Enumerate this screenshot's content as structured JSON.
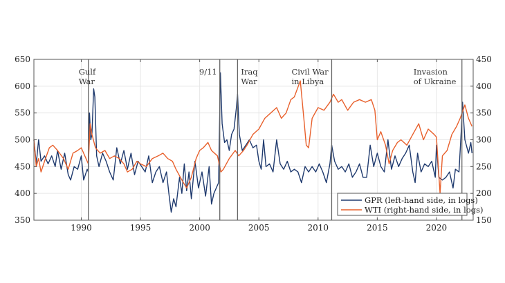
{
  "chart_data": {
    "type": "line",
    "xlim": [
      1986.0,
      2023.1
    ],
    "x_ticks": [
      1990,
      1995,
      2000,
      2005,
      2010,
      2015,
      2020
    ],
    "left_axis": {
      "range": [
        350,
        650
      ],
      "ticks": [
        350,
        400,
        450,
        500,
        550,
        600,
        650
      ]
    },
    "right_axis": {
      "range": [
        150,
        450
      ],
      "ticks": [
        150,
        200,
        250,
        300,
        350,
        400,
        450
      ]
    },
    "grid": true,
    "legend_position": "bottom-right",
    "events": [
      {
        "x": 1990.6,
        "label": [
          "Gulf",
          "War"
        ]
      },
      {
        "x": 2001.7,
        "label": [
          "9/11"
        ]
      },
      {
        "x": 2003.2,
        "label": [
          "Iraq",
          "War"
        ]
      },
      {
        "x": 2011.15,
        "label": [
          "Civil War",
          "in Libya"
        ]
      },
      {
        "x": 2022.15,
        "label": [
          "Invasion",
          "of Ukraine"
        ]
      }
    ],
    "series": [
      {
        "name": "GPR (left-hand side, in logs)",
        "axis": "left",
        "color": "#1f3a6e",
        "points": [
          [
            1986.0,
            500
          ],
          [
            1986.2,
            455
          ],
          [
            1986.4,
            500
          ],
          [
            1986.6,
            460
          ],
          [
            1986.9,
            470
          ],
          [
            1987.2,
            455
          ],
          [
            1987.5,
            470
          ],
          [
            1987.8,
            450
          ],
          [
            1988.0,
            480
          ],
          [
            1988.3,
            445
          ],
          [
            1988.6,
            475
          ],
          [
            1988.9,
            435
          ],
          [
            1989.1,
            425
          ],
          [
            1989.4,
            450
          ],
          [
            1989.7,
            445
          ],
          [
            1990.0,
            470
          ],
          [
            1990.2,
            425
          ],
          [
            1990.5,
            445
          ],
          [
            1990.6,
            440
          ],
          [
            1990.7,
            550
          ],
          [
            1990.8,
            500
          ],
          [
            1990.9,
            510
          ],
          [
            1991.05,
            595
          ],
          [
            1991.15,
            580
          ],
          [
            1991.3,
            470
          ],
          [
            1991.5,
            450
          ],
          [
            1991.8,
            475
          ],
          [
            1992.1,
            460
          ],
          [
            1992.4,
            440
          ],
          [
            1992.7,
            425
          ],
          [
            1993.0,
            485
          ],
          [
            1993.3,
            455
          ],
          [
            1993.6,
            480
          ],
          [
            1993.9,
            445
          ],
          [
            1994.2,
            475
          ],
          [
            1994.5,
            435
          ],
          [
            1994.8,
            460
          ],
          [
            1995.1,
            450
          ],
          [
            1995.4,
            440
          ],
          [
            1995.7,
            470
          ],
          [
            1996.0,
            420
          ],
          [
            1996.3,
            440
          ],
          [
            1996.6,
            450
          ],
          [
            1996.9,
            420
          ],
          [
            1997.2,
            440
          ],
          [
            1997.4,
            400
          ],
          [
            1997.6,
            365
          ],
          [
            1997.8,
            390
          ],
          [
            1998.0,
            375
          ],
          [
            1998.3,
            430
          ],
          [
            1998.5,
            400
          ],
          [
            1998.7,
            455
          ],
          [
            1998.9,
            405
          ],
          [
            1999.1,
            440
          ],
          [
            1999.3,
            390
          ],
          [
            1999.6,
            460
          ],
          [
            1999.9,
            410
          ],
          [
            2000.2,
            440
          ],
          [
            2000.5,
            395
          ],
          [
            2000.8,
            450
          ],
          [
            2001.0,
            380
          ],
          [
            2001.2,
            400
          ],
          [
            2001.4,
            410
          ],
          [
            2001.6,
            420
          ],
          [
            2001.75,
            625
          ],
          [
            2001.9,
            530
          ],
          [
            2002.1,
            495
          ],
          [
            2002.3,
            500
          ],
          [
            2002.5,
            480
          ],
          [
            2002.7,
            510
          ],
          [
            2002.9,
            520
          ],
          [
            2003.1,
            560
          ],
          [
            2003.2,
            585
          ],
          [
            2003.35,
            510
          ],
          [
            2003.6,
            480
          ],
          [
            2003.9,
            490
          ],
          [
            2004.2,
            500
          ],
          [
            2004.5,
            485
          ],
          [
            2004.8,
            490
          ],
          [
            2005.0,
            460
          ],
          [
            2005.2,
            445
          ],
          [
            2005.4,
            500
          ],
          [
            2005.6,
            450
          ],
          [
            2005.9,
            455
          ],
          [
            2006.2,
            440
          ],
          [
            2006.5,
            500
          ],
          [
            2006.8,
            455
          ],
          [
            2007.1,
            445
          ],
          [
            2007.4,
            460
          ],
          [
            2007.7,
            440
          ],
          [
            2008.0,
            445
          ],
          [
            2008.3,
            440
          ],
          [
            2008.6,
            420
          ],
          [
            2008.9,
            450
          ],
          [
            2009.2,
            440
          ],
          [
            2009.5,
            450
          ],
          [
            2009.8,
            440
          ],
          [
            2010.1,
            455
          ],
          [
            2010.4,
            440
          ],
          [
            2010.7,
            420
          ],
          [
            2011.0,
            455
          ],
          [
            2011.15,
            490
          ],
          [
            2011.4,
            460
          ],
          [
            2011.7,
            445
          ],
          [
            2012.0,
            450
          ],
          [
            2012.3,
            440
          ],
          [
            2012.6,
            455
          ],
          [
            2012.9,
            430
          ],
          [
            2013.2,
            440
          ],
          [
            2013.5,
            455
          ],
          [
            2013.8,
            430
          ],
          [
            2014.1,
            430
          ],
          [
            2014.4,
            490
          ],
          [
            2014.7,
            450
          ],
          [
            2015.0,
            475
          ],
          [
            2015.3,
            450
          ],
          [
            2015.6,
            440
          ],
          [
            2015.9,
            500
          ],
          [
            2016.2,
            445
          ],
          [
            2016.5,
            470
          ],
          [
            2016.8,
            450
          ],
          [
            2017.1,
            465
          ],
          [
            2017.4,
            475
          ],
          [
            2017.7,
            490
          ],
          [
            2018.0,
            440
          ],
          [
            2018.2,
            420
          ],
          [
            2018.4,
            475
          ],
          [
            2018.7,
            440
          ],
          [
            2019.0,
            455
          ],
          [
            2019.3,
            450
          ],
          [
            2019.6,
            460
          ],
          [
            2019.9,
            430
          ],
          [
            2020.0,
            490
          ],
          [
            2020.2,
            430
          ],
          [
            2020.5,
            425
          ],
          [
            2020.8,
            430
          ],
          [
            2021.1,
            440
          ],
          [
            2021.4,
            410
          ],
          [
            2021.6,
            445
          ],
          [
            2021.9,
            440
          ],
          [
            2022.1,
            520
          ],
          [
            2022.2,
            570
          ],
          [
            2022.4,
            500
          ],
          [
            2022.7,
            475
          ],
          [
            2022.9,
            495
          ],
          [
            2023.0,
            475
          ]
        ]
      },
      {
        "name": "WTI (right-hand side, in logs)",
        "axis": "right",
        "color": "#e8602c",
        "points": [
          [
            1986.0,
            300
          ],
          [
            1986.2,
            250
          ],
          [
            1986.4,
            265
          ],
          [
            1986.6,
            240
          ],
          [
            1986.9,
            260
          ],
          [
            1987.3,
            285
          ],
          [
            1987.6,
            290
          ],
          [
            1988.0,
            280
          ],
          [
            1988.5,
            265
          ],
          [
            1988.9,
            245
          ],
          [
            1989.3,
            275
          ],
          [
            1989.7,
            280
          ],
          [
            1990.0,
            285
          ],
          [
            1990.4,
            265
          ],
          [
            1990.6,
            255
          ],
          [
            1990.75,
            330
          ],
          [
            1990.9,
            310
          ],
          [
            1991.2,
            285
          ],
          [
            1991.6,
            275
          ],
          [
            1992.0,
            280
          ],
          [
            1992.4,
            265
          ],
          [
            1992.8,
            270
          ],
          [
            1993.2,
            265
          ],
          [
            1993.6,
            255
          ],
          [
            1993.9,
            240
          ],
          [
            1994.3,
            245
          ],
          [
            1994.7,
            260
          ],
          [
            1995.0,
            255
          ],
          [
            1995.5,
            250
          ],
          [
            1996.0,
            265
          ],
          [
            1996.5,
            270
          ],
          [
            1996.9,
            275
          ],
          [
            1997.3,
            265
          ],
          [
            1997.7,
            260
          ],
          [
            1998.0,
            245
          ],
          [
            1998.5,
            225
          ],
          [
            1998.9,
            210
          ],
          [
            1999.3,
            230
          ],
          [
            1999.7,
            265
          ],
          [
            2000.0,
            280
          ],
          [
            2000.3,
            285
          ],
          [
            2000.7,
            295
          ],
          [
            2001.0,
            280
          ],
          [
            2001.5,
            270
          ],
          [
            2001.8,
            240
          ],
          [
            2002.0,
            245
          ],
          [
            2002.5,
            265
          ],
          [
            2003.0,
            280
          ],
          [
            2003.3,
            270
          ],
          [
            2003.7,
            280
          ],
          [
            2004.0,
            290
          ],
          [
            2004.5,
            310
          ],
          [
            2005.0,
            320
          ],
          [
            2005.5,
            340
          ],
          [
            2006.0,
            350
          ],
          [
            2006.5,
            360
          ],
          [
            2006.9,
            340
          ],
          [
            2007.3,
            350
          ],
          [
            2007.7,
            375
          ],
          [
            2008.0,
            380
          ],
          [
            2008.5,
            410
          ],
          [
            2008.8,
            340
          ],
          [
            2009.0,
            290
          ],
          [
            2009.2,
            285
          ],
          [
            2009.5,
            340
          ],
          [
            2010.0,
            360
          ],
          [
            2010.5,
            355
          ],
          [
            2011.0,
            370
          ],
          [
            2011.3,
            385
          ],
          [
            2011.7,
            370
          ],
          [
            2012.0,
            375
          ],
          [
            2012.5,
            355
          ],
          [
            2013.0,
            370
          ],
          [
            2013.5,
            375
          ],
          [
            2014.0,
            370
          ],
          [
            2014.5,
            375
          ],
          [
            2014.8,
            355
          ],
          [
            2015.0,
            300
          ],
          [
            2015.3,
            315
          ],
          [
            2015.7,
            290
          ],
          [
            2016.0,
            255
          ],
          [
            2016.3,
            280
          ],
          [
            2016.7,
            295
          ],
          [
            2017.0,
            300
          ],
          [
            2017.5,
            290
          ],
          [
            2018.0,
            310
          ],
          [
            2018.5,
            330
          ],
          [
            2018.9,
            300
          ],
          [
            2019.3,
            320
          ],
          [
            2019.8,
            310
          ],
          [
            2020.0,
            305
          ],
          [
            2020.3,
            200
          ],
          [
            2020.5,
            270
          ],
          [
            2020.9,
            280
          ],
          [
            2021.3,
            310
          ],
          [
            2021.7,
            325
          ],
          [
            2022.0,
            340
          ],
          [
            2022.4,
            365
          ],
          [
            2022.7,
            340
          ],
          [
            2023.0,
            325
          ]
        ]
      }
    ]
  }
}
